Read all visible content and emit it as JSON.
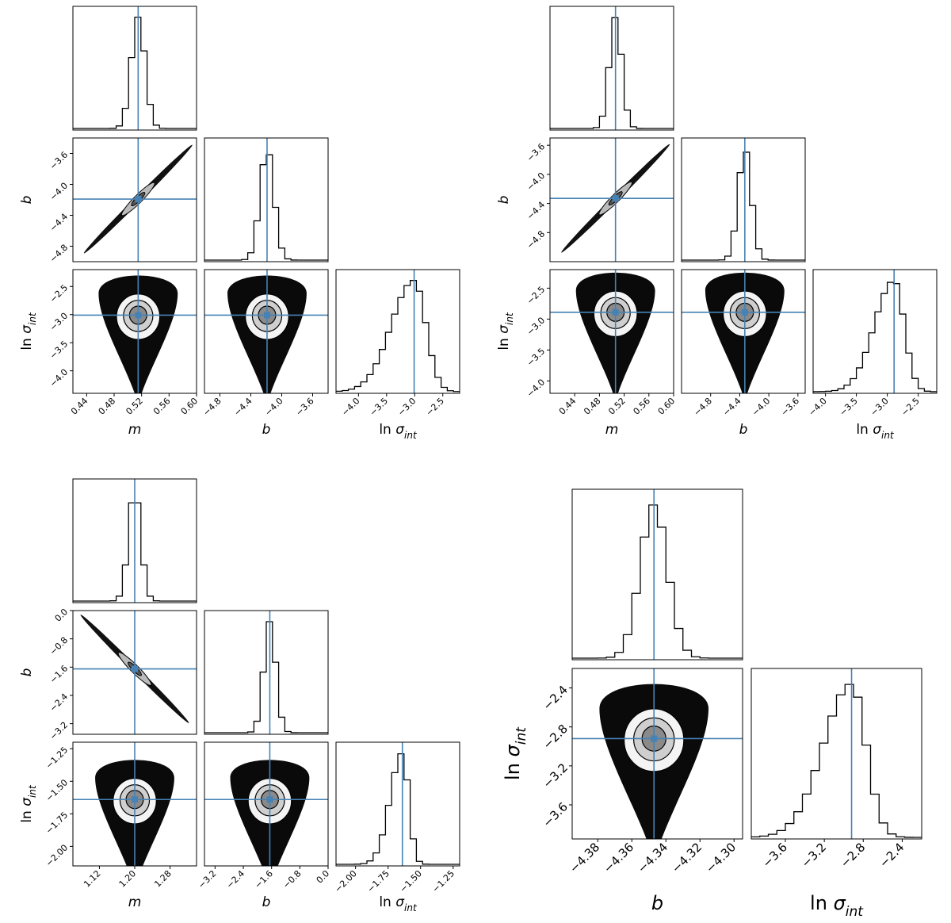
{
  "colors": {
    "truth": "#4682b4",
    "hist": "#000000",
    "density": "#000000"
  },
  "chart_data": [
    {
      "type": "corner",
      "params": [
        {
          "label": "m",
          "range": [
            0.42,
            0.6
          ],
          "ticks": [
            "0.44",
            "0.48",
            "0.52",
            "0.56",
            "0.60"
          ],
          "tick_values": [
            0.44,
            0.48,
            0.52,
            0.56,
            0.6
          ],
          "truth": 0.515,
          "hist_width": 0.01
        },
        {
          "label": "b",
          "range": [
            -5.0,
            -3.4
          ],
          "ticks": [
            "−4.8",
            "−4.4",
            "−4.0",
            "−3.6"
          ],
          "tick_values": [
            -4.8,
            -4.4,
            -4.0,
            -3.6
          ],
          "truth": -4.19,
          "hist_width": 0.09
        },
        {
          "label": "ln σ_int",
          "range": [
            -4.4,
            -2.2
          ],
          "ticks": [
            "−4.0",
            "−3.5",
            "−3.0",
            "−2.5"
          ],
          "tick_values": [
            -4.0,
            -3.5,
            -3.0,
            -2.5
          ],
          "truth": -3.01,
          "hist_width": 0.28
        }
      ],
      "corr": {
        "m-b": 0.99,
        "m-ln σ_int": 0.0,
        "b-ln σ_int": 0.0
      }
    },
    {
      "type": "corner",
      "params": [
        {
          "label": "m",
          "range": [
            0.4,
            0.6
          ],
          "ticks": [
            "0.44",
            "0.48",
            "0.52",
            "0.56",
            "0.60"
          ],
          "tick_values": [
            0.44,
            0.48,
            0.52,
            0.56,
            0.6
          ],
          "truth": 0.506,
          "hist_width": 0.01
        },
        {
          "label": "b",
          "range": [
            -5.2,
            -3.5
          ],
          "ticks": [
            "−4.8",
            "−4.4",
            "−4.0",
            "−3.6"
          ],
          "tick_values": [
            -4.8,
            -4.4,
            -4.0,
            -3.6
          ],
          "truth": -4.33,
          "hist_width": 0.09
        },
        {
          "label": "ln σ_int",
          "range": [
            -4.2,
            -2.2
          ],
          "ticks": [
            "−4.0",
            "−3.5",
            "−3.0",
            "−2.5"
          ],
          "tick_values": [
            -4.0,
            -3.5,
            -3.0,
            -2.5
          ],
          "truth": -2.89,
          "hist_width": 0.22
        }
      ],
      "corr": {
        "m-b": 0.99,
        "m-ln σ_int": 0.0,
        "b-ln σ_int": 0.0
      }
    },
    {
      "type": "corner",
      "params": [
        {
          "label": "m",
          "range": [
            1.06,
            1.34
          ],
          "ticks": [
            "1.12",
            "1.20",
            "1.28"
          ],
          "tick_values": [
            1.12,
            1.2,
            1.28
          ],
          "truth": 1.2,
          "hist_width": 0.014
        },
        {
          "label": "b",
          "range": [
            -3.5,
            0.0
          ],
          "ticks": [
            "−3.2",
            "−2.4",
            "−1.6",
            "−0.8",
            "0.0"
          ],
          "tick_values": [
            -3.2,
            -2.4,
            -1.6,
            -0.8,
            0.0
          ],
          "truth": -1.65,
          "hist_width": 0.17
        },
        {
          "label": "ln σ_int",
          "range": [
            -2.15,
            -1.2
          ],
          "ticks": [
            "−2.00",
            "−1.75",
            "−1.50",
            "−1.25"
          ],
          "tick_values": [
            -2.0,
            -1.75,
            -1.5,
            -1.25
          ],
          "truth": -1.64,
          "hist_width": 0.065
        }
      ],
      "corr": {
        "m-b": -0.99,
        "m-ln σ_int": 0.0,
        "b-ln σ_int": 0.0
      }
    },
    {
      "type": "corner",
      "params": [
        {
          "label": "b",
          "range": [
            -4.395,
            -4.295
          ],
          "ticks": [
            "−4.38",
            "−4.36",
            "−4.34",
            "−4.32",
            "−4.30"
          ],
          "tick_values": [
            -4.38,
            -4.36,
            -4.34,
            -4.32,
            -4.3
          ],
          "truth": -4.347,
          "hist_width": 0.008
        },
        {
          "label": "ln σ_int",
          "range": [
            -3.95,
            -2.2
          ],
          "ticks": [
            "−3.6",
            "−3.2",
            "−2.8",
            "−2.4"
          ],
          "tick_values": [
            -3.6,
            -3.2,
            -2.8,
            -2.4
          ],
          "truth": -2.92,
          "hist_width": 0.2
        }
      ],
      "corr": {
        "b-ln σ_int": 0.0
      }
    }
  ]
}
